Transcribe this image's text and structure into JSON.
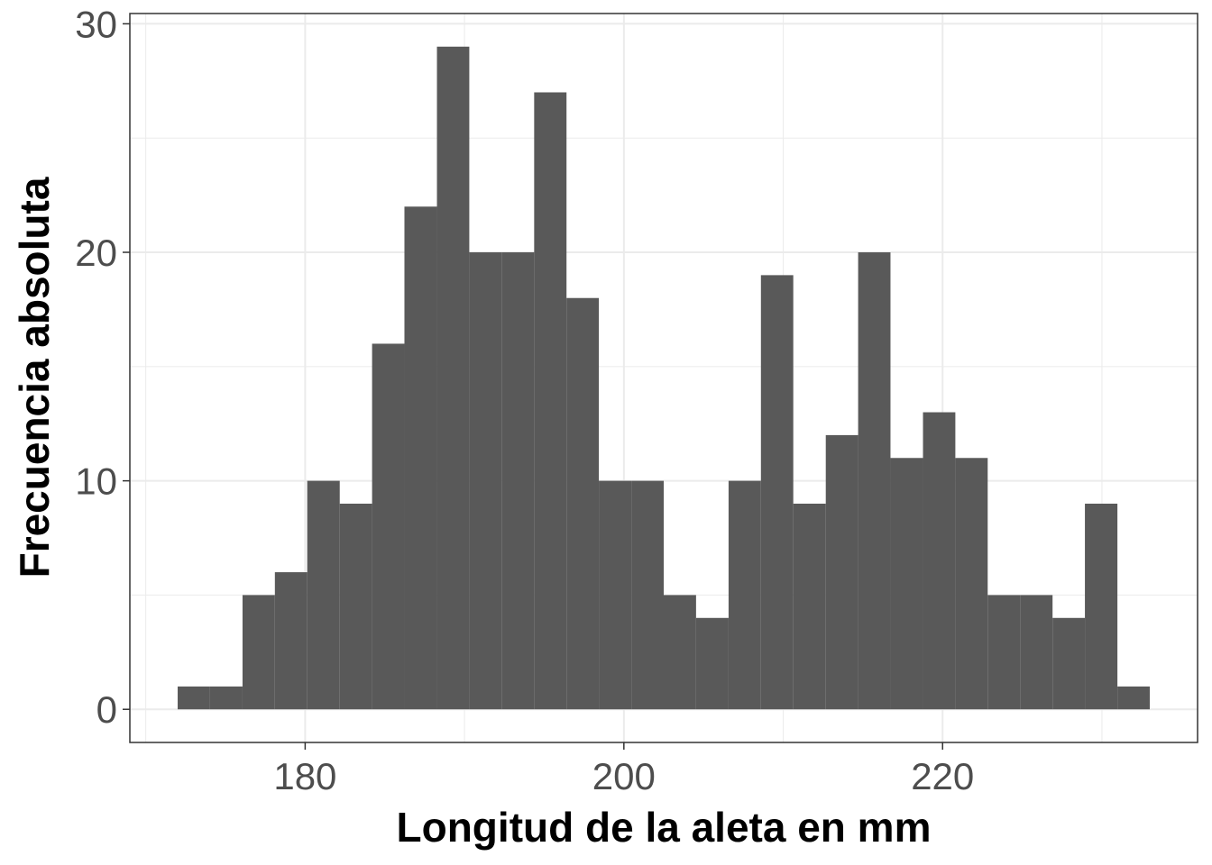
{
  "chart_data": {
    "type": "bar",
    "title": "",
    "xlabel": "Longitud de la aleta en mm",
    "ylabel": "Frecuencia absoluta",
    "bin_width": 2.033,
    "bins": [
      {
        "x0": 172.0,
        "x1": 174.03,
        "count": 1
      },
      {
        "x0": 174.03,
        "x1": 176.07,
        "count": 1
      },
      {
        "x0": 176.07,
        "x1": 178.1,
        "count": 5
      },
      {
        "x0": 178.1,
        "x1": 180.13,
        "count": 6
      },
      {
        "x0": 180.13,
        "x1": 182.17,
        "count": 10
      },
      {
        "x0": 182.17,
        "x1": 184.2,
        "count": 9
      },
      {
        "x0": 184.2,
        "x1": 186.23,
        "count": 16
      },
      {
        "x0": 186.23,
        "x1": 188.27,
        "count": 22
      },
      {
        "x0": 188.27,
        "x1": 190.3,
        "count": 29
      },
      {
        "x0": 190.3,
        "x1": 192.33,
        "count": 20
      },
      {
        "x0": 192.33,
        "x1": 194.37,
        "count": 20
      },
      {
        "x0": 194.37,
        "x1": 196.4,
        "count": 27
      },
      {
        "x0": 196.4,
        "x1": 198.43,
        "count": 18
      },
      {
        "x0": 198.43,
        "x1": 200.47,
        "count": 10
      },
      {
        "x0": 200.47,
        "x1": 202.5,
        "count": 10
      },
      {
        "x0": 202.5,
        "x1": 204.53,
        "count": 5
      },
      {
        "x0": 204.53,
        "x1": 206.57,
        "count": 4
      },
      {
        "x0": 206.57,
        "x1": 208.6,
        "count": 10
      },
      {
        "x0": 208.6,
        "x1": 210.63,
        "count": 19
      },
      {
        "x0": 210.63,
        "x1": 212.67,
        "count": 9
      },
      {
        "x0": 212.67,
        "x1": 214.7,
        "count": 12
      },
      {
        "x0": 214.7,
        "x1": 216.73,
        "count": 20
      },
      {
        "x0": 216.73,
        "x1": 218.77,
        "count": 11
      },
      {
        "x0": 218.77,
        "x1": 220.8,
        "count": 13
      },
      {
        "x0": 220.8,
        "x1": 222.83,
        "count": 11
      },
      {
        "x0": 222.83,
        "x1": 224.87,
        "count": 5
      },
      {
        "x0": 224.87,
        "x1": 226.9,
        "count": 5
      },
      {
        "x0": 226.9,
        "x1": 228.93,
        "count": 4
      },
      {
        "x0": 228.93,
        "x1": 230.97,
        "count": 9
      },
      {
        "x0": 230.97,
        "x1": 233.0,
        "count": 1
      }
    ],
    "xlim": [
      169.0,
      236.0
    ],
    "ylim": [
      -1.45,
      30.45
    ],
    "x_ticks": [
      180,
      200,
      220
    ],
    "x_minor_ticks": [
      170,
      190,
      210,
      230
    ],
    "y_ticks": [
      0,
      10,
      20,
      30
    ],
    "y_minor_ticks": [
      5,
      15,
      25
    ],
    "grid": true,
    "bar_color": "#595959",
    "grid_color": "#ebebeb",
    "panel_border_color": "#333333"
  }
}
